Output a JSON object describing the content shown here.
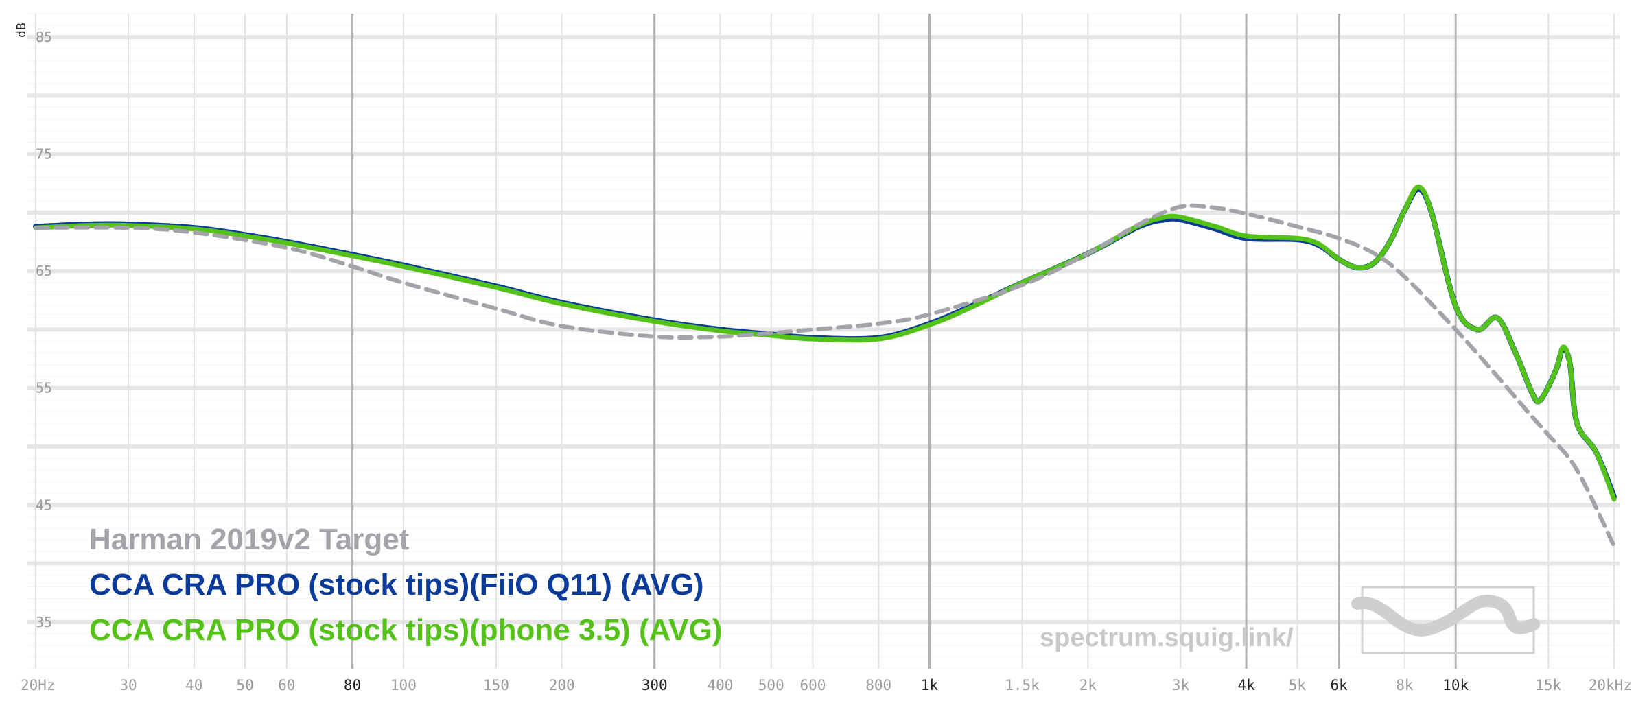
{
  "chart_data": {
    "type": "line",
    "xscale": "log",
    "xlim": [
      20,
      20000
    ],
    "ylim": [
      31,
      87
    ],
    "y_unit": "dB",
    "y_ticks": [
      85,
      75,
      65,
      55,
      45,
      35
    ],
    "x_ticks": [
      {
        "v": 20,
        "label": "20Hz",
        "major": false
      },
      {
        "v": 30,
        "label": "30",
        "major": false
      },
      {
        "v": 40,
        "label": "40",
        "major": false
      },
      {
        "v": 50,
        "label": "50",
        "major": false
      },
      {
        "v": 60,
        "label": "60",
        "major": false
      },
      {
        "v": 80,
        "label": "80",
        "major": true
      },
      {
        "v": 100,
        "label": "100",
        "major": false
      },
      {
        "v": 150,
        "label": "150",
        "major": false
      },
      {
        "v": 200,
        "label": "200",
        "major": false
      },
      {
        "v": 300,
        "label": "300",
        "major": true
      },
      {
        "v": 400,
        "label": "400",
        "major": false
      },
      {
        "v": 500,
        "label": "500",
        "major": false
      },
      {
        "v": 600,
        "label": "600",
        "major": false
      },
      {
        "v": 800,
        "label": "800",
        "major": false
      },
      {
        "v": 1000,
        "label": "1k",
        "major": true
      },
      {
        "v": 1500,
        "label": "1.5k",
        "major": false
      },
      {
        "v": 2000,
        "label": "2k",
        "major": false
      },
      {
        "v": 3000,
        "label": "3k",
        "major": false
      },
      {
        "v": 4000,
        "label": "4k",
        "major": true
      },
      {
        "v": 5000,
        "label": "5k",
        "major": false
      },
      {
        "v": 6000,
        "label": "6k",
        "major": true
      },
      {
        "v": 8000,
        "label": "8k",
        "major": false
      },
      {
        "v": 10000,
        "label": "10k",
        "major": true
      },
      {
        "v": 15000,
        "label": "15k",
        "major": false
      },
      {
        "v": 20000,
        "label": "20kHz",
        "major": false
      }
    ],
    "grid": true,
    "legend_position": "bottom-left",
    "series": [
      {
        "name": "Harman 2019v2 Target",
        "color": "#a3a3aa",
        "style": "dashed",
        "points": [
          [
            20,
            68.7
          ],
          [
            30,
            68.7
          ],
          [
            40,
            68.3
          ],
          [
            60,
            67.0
          ],
          [
            80,
            65.4
          ],
          [
            100,
            64.0
          ],
          [
            150,
            61.8
          ],
          [
            200,
            60.3
          ],
          [
            300,
            59.4
          ],
          [
            400,
            59.4
          ],
          [
            500,
            59.7
          ],
          [
            600,
            60.0
          ],
          [
            800,
            60.5
          ],
          [
            1000,
            61.3
          ],
          [
            1500,
            63.8
          ],
          [
            2000,
            66.5
          ],
          [
            2500,
            69.0
          ],
          [
            3000,
            70.5
          ],
          [
            3500,
            70.4
          ],
          [
            4000,
            69.9
          ],
          [
            5000,
            68.8
          ],
          [
            6000,
            67.8
          ],
          [
            7000,
            66.5
          ],
          [
            8000,
            64.5
          ],
          [
            10000,
            60.0
          ],
          [
            12000,
            56.0
          ],
          [
            14000,
            52.5
          ],
          [
            15000,
            51.0
          ],
          [
            17000,
            48.0
          ],
          [
            20000,
            41.5
          ]
        ]
      },
      {
        "name": "CCA CRA PRO (stock tips)(FiiO Q11) (AVG)",
        "color": "#0a3a9a",
        "style": "solid",
        "points": [
          [
            20,
            68.8
          ],
          [
            25,
            69.0
          ],
          [
            30,
            69.0
          ],
          [
            40,
            68.7
          ],
          [
            50,
            68.1
          ],
          [
            60,
            67.5
          ],
          [
            80,
            66.4
          ],
          [
            100,
            65.5
          ],
          [
            150,
            63.7
          ],
          [
            200,
            62.3
          ],
          [
            300,
            60.8
          ],
          [
            400,
            60.0
          ],
          [
            500,
            59.6
          ],
          [
            600,
            59.3
          ],
          [
            800,
            59.3
          ],
          [
            1000,
            60.5
          ],
          [
            1200,
            62.0
          ],
          [
            1500,
            64.0
          ],
          [
            2000,
            66.5
          ],
          [
            2500,
            68.8
          ],
          [
            2800,
            69.4
          ],
          [
            3000,
            69.4
          ],
          [
            3500,
            68.6
          ],
          [
            4000,
            67.8
          ],
          [
            5000,
            67.7
          ],
          [
            5500,
            67.2
          ],
          [
            6000,
            66.0
          ],
          [
            6500,
            65.3
          ],
          [
            7000,
            65.7
          ],
          [
            7500,
            67.5
          ],
          [
            8000,
            70.2
          ],
          [
            8500,
            72.0
          ],
          [
            9000,
            70.0
          ],
          [
            10000,
            62.0
          ],
          [
            11000,
            60.0
          ],
          [
            12000,
            61.0
          ],
          [
            13000,
            58.0
          ],
          [
            14000,
            54.5
          ],
          [
            14500,
            54.0
          ],
          [
            15500,
            56.5
          ],
          [
            16000,
            58.4
          ],
          [
            16500,
            57.0
          ],
          [
            17000,
            52.0
          ],
          [
            18500,
            49.5
          ],
          [
            20000,
            45.7
          ]
        ]
      },
      {
        "name": "CCA CRA PRO (stock tips)(phone 3.5) (AVG)",
        "color": "#55c21a",
        "style": "solid",
        "points": [
          [
            20,
            68.7
          ],
          [
            25,
            68.9
          ],
          [
            30,
            68.9
          ],
          [
            40,
            68.6
          ],
          [
            50,
            68.0
          ],
          [
            60,
            67.4
          ],
          [
            80,
            66.3
          ],
          [
            100,
            65.4
          ],
          [
            150,
            63.6
          ],
          [
            200,
            62.2
          ],
          [
            300,
            60.7
          ],
          [
            400,
            59.9
          ],
          [
            500,
            59.5
          ],
          [
            600,
            59.2
          ],
          [
            800,
            59.2
          ],
          [
            1000,
            60.4
          ],
          [
            1200,
            61.9
          ],
          [
            1500,
            64.0
          ],
          [
            2000,
            66.5
          ],
          [
            2500,
            68.9
          ],
          [
            2800,
            69.6
          ],
          [
            3000,
            69.6
          ],
          [
            3500,
            68.8
          ],
          [
            4000,
            68.0
          ],
          [
            5000,
            67.8
          ],
          [
            5500,
            67.3
          ],
          [
            6000,
            66.0
          ],
          [
            6500,
            65.3
          ],
          [
            7000,
            65.7
          ],
          [
            7500,
            67.5
          ],
          [
            8000,
            70.2
          ],
          [
            8500,
            72.2
          ],
          [
            9000,
            70.0
          ],
          [
            10000,
            62.0
          ],
          [
            11000,
            60.0
          ],
          [
            12000,
            61.0
          ],
          [
            13000,
            58.0
          ],
          [
            14000,
            54.5
          ],
          [
            14500,
            54.0
          ],
          [
            15500,
            56.5
          ],
          [
            16000,
            58.5
          ],
          [
            16500,
            57.0
          ],
          [
            17000,
            52.0
          ],
          [
            18500,
            49.5
          ],
          [
            20000,
            45.5
          ]
        ]
      }
    ]
  },
  "watermark": "spectrum.squig.link/",
  "watermark_icon": "squiggle-logo-icon"
}
